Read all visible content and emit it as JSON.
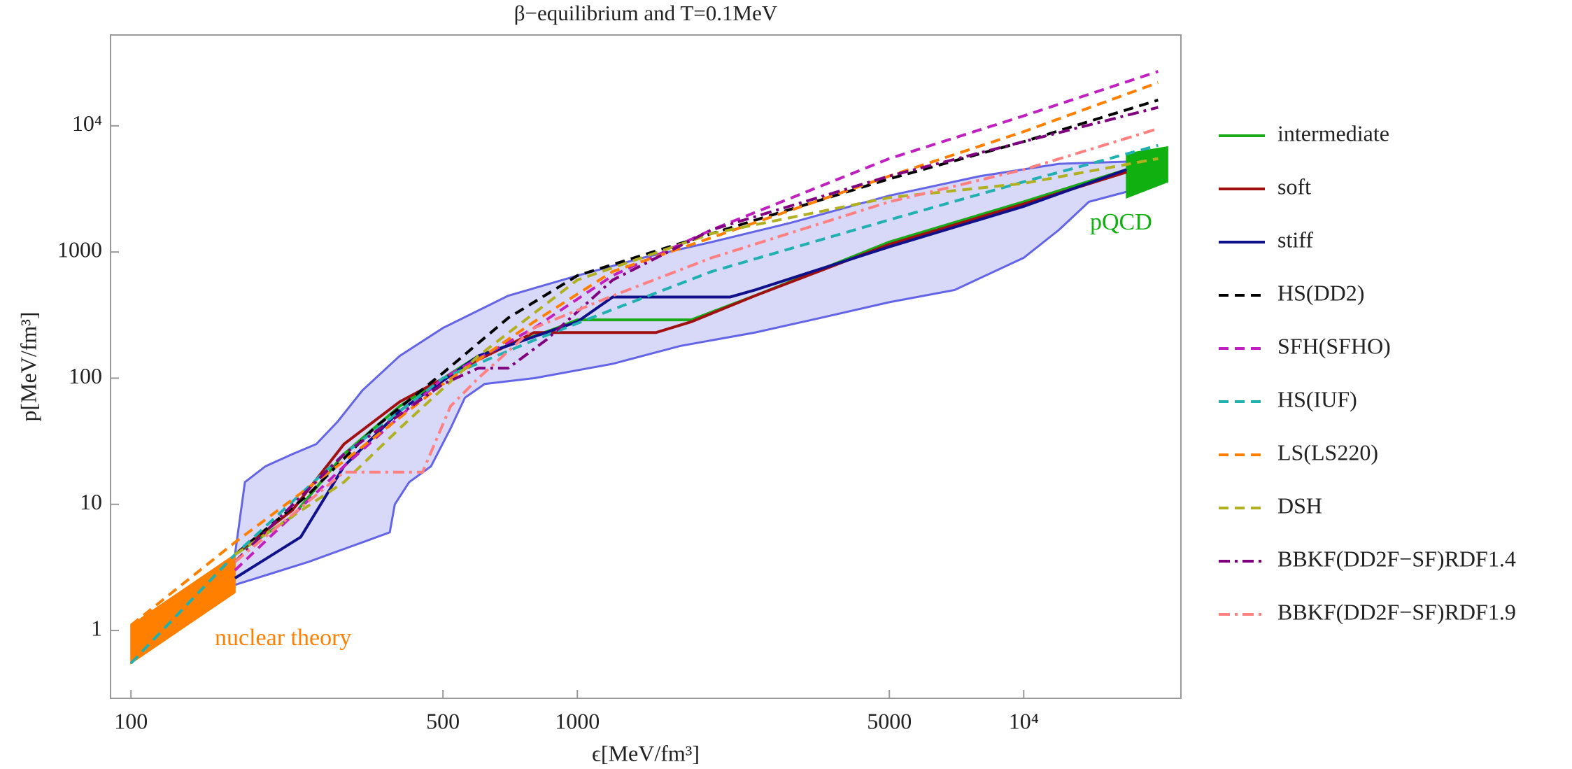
{
  "chart_data": {
    "type": "line",
    "title": "β−equilibrium and T=0.1MeV",
    "x_label": "ϵ[MeV/fm³]",
    "y_label": "p[MeV/fm³]",
    "log_x": true,
    "log_y": true,
    "xlim": [
      90,
      22500
    ],
    "ylim": [
      0.29,
      52500
    ],
    "xticks": [
      100,
      500,
      1000,
      5000,
      {
        "value": 10000,
        "label": "10⁴"
      }
    ],
    "yticks": [
      1,
      10,
      100,
      1000,
      {
        "value": 10000,
        "label": "10⁴"
      }
    ],
    "allowed_band": {
      "color": "#d8d8f8",
      "edge_color": "#6464e6",
      "upper": {
        "x": [
          171,
          180,
          200,
          230,
          260,
          290,
          330,
          400,
          500,
          700,
          1000,
          1400,
          2000,
          3000,
          5000,
          8000,
          12000,
          17000
        ],
        "y": [
          4,
          15,
          20,
          25,
          30,
          45,
          80,
          150,
          250,
          450,
          650,
          900,
          1200,
          1700,
          2800,
          4000,
          5000,
          5200
        ]
      },
      "lower": {
        "x": [
          171,
          250,
          330,
          380,
          390,
          420,
          470,
          520,
          560,
          620,
          800,
          1200,
          1700,
          2500,
          3500,
          5000,
          7000,
          10000,
          12000,
          14000,
          17000
        ],
        "y": [
          2.3,
          3.5,
          5,
          6,
          10,
          15,
          20,
          40,
          70,
          90,
          100,
          130,
          180,
          230,
          300,
          400,
          500,
          900,
          1500,
          2500,
          3000
        ]
      }
    },
    "regions": [
      {
        "label": "nuclear theory",
        "color": "#ff8000",
        "x": [
          100,
          171
        ],
        "upper": [
          1.1,
          4.0
        ],
        "lower": [
          0.55,
          2.0
        ]
      },
      {
        "label": "pQCD",
        "color": "#10b010",
        "x": [
          17000,
          21000
        ],
        "upper": [
          6000,
          6800
        ],
        "lower": [
          2700,
          3600
        ]
      }
    ],
    "series": [
      {
        "name": "intermediate",
        "color": "#1aaa1a",
        "dash": "solid",
        "x": [
          171,
          230,
          300,
          400,
          600,
          900,
          1000,
          1800,
          2500,
          5000,
          10000,
          17000
        ],
        "values": [
          4,
          8,
          25,
          60,
          150,
          250,
          290,
          290,
          450,
          1200,
          2500,
          4500
        ]
      },
      {
        "name": "soft",
        "color": "#a01010",
        "dash": "solid",
        "x": [
          171,
          230,
          300,
          400,
          600,
          800,
          1500,
          1800,
          2500,
          5000,
          10000,
          17000
        ],
        "values": [
          4,
          9,
          30,
          65,
          140,
          230,
          230,
          280,
          450,
          1150,
          2400,
          4300
        ]
      },
      {
        "name": "stiff",
        "color": "#10108a",
        "dash": "solid",
        "x": [
          171,
          240,
          300,
          400,
          600,
          1000,
          1200,
          2200,
          2500,
          5000,
          10000,
          17000
        ],
        "values": [
          2.6,
          5.5,
          20,
          55,
          150,
          280,
          440,
          440,
          500,
          1100,
          2300,
          4500
        ]
      },
      {
        "name": "HS(DD2)",
        "color": "#000000",
        "dash": "dashed",
        "x": [
          171,
          250,
          350,
          500,
          700,
          1000,
          2000,
          5000,
          10000,
          20000
        ],
        "values": [
          4,
          12,
          40,
          110,
          300,
          650,
          1400,
          3800,
          7500,
          16000
        ]
      },
      {
        "name": "SFH(SFHO)",
        "color": "#c020c0",
        "dash": "dashed",
        "x": [
          171,
          300,
          500,
          800,
          1200,
          2000,
          5000,
          10000,
          20000
        ],
        "values": [
          3,
          20,
          100,
          250,
          650,
          1500,
          5500,
          12000,
          27000
        ]
      },
      {
        "name": "HS(IUF)",
        "color": "#20b0b0",
        "dash": "dashed",
        "x": [
          100,
          171,
          300,
          500,
          800,
          1200,
          2000,
          5000,
          10000,
          20000
        ],
        "values": [
          0.55,
          4,
          25,
          100,
          200,
          350,
          700,
          1800,
          3600,
          7000
        ]
      },
      {
        "name": "LS(LS220)",
        "color": "#ff8000",
        "dash": "dashed",
        "x": [
          100,
          171,
          300,
          500,
          800,
          1200,
          2000,
          5000,
          10000,
          20000
        ],
        "values": [
          1.1,
          5,
          22,
          90,
          280,
          700,
          1300,
          4000,
          9000,
          22000
        ]
      },
      {
        "name": "DSH",
        "color": "#b0b020",
        "dash": "dashed",
        "x": [
          171,
          300,
          400,
          600,
          1000,
          2000,
          5000,
          10000,
          20000
        ],
        "values": [
          4,
          15,
          40,
          150,
          600,
          1400,
          2700,
          3500,
          5500
        ]
      },
      {
        "name": "BBKF(DD2F−SF)RDF1.4",
        "color": "#800080",
        "dash": "dashdot",
        "x": [
          171,
          300,
          500,
          600,
          700,
          850,
          1200,
          2000,
          5000,
          10000,
          20000
        ],
        "values": [
          3.5,
          25,
          90,
          120,
          120,
          200,
          600,
          1500,
          4000,
          7500,
          14000
        ]
      },
      {
        "name": "BBKF(DD2F−SF)RDF1.9",
        "color": "#ff8080",
        "dash": "dashdot",
        "x": [
          171,
          300,
          450,
          520,
          600,
          800,
          1200,
          2000,
          5000,
          10000,
          20000
        ],
        "values": [
          3.5,
          18,
          18,
          60,
          100,
          250,
          450,
          900,
          2500,
          4500,
          9500
        ]
      }
    ]
  }
}
